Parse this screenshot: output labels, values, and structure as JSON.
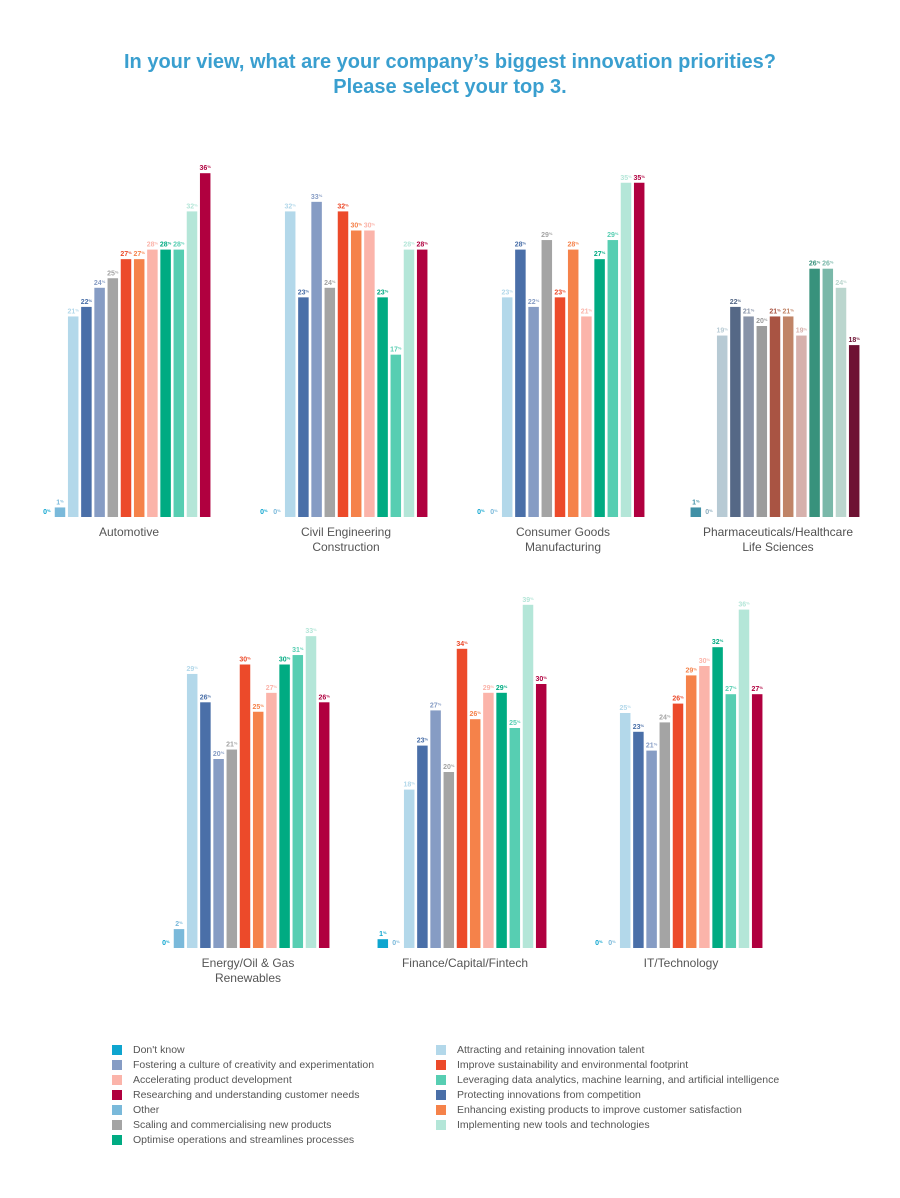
{
  "title": {
    "line1": "In your view, what are your company’s biggest innovation priorities?",
    "line2": "Please select your top 3."
  },
  "chart_data": {
    "type": "bar",
    "title": "In your view, what are your company’s biggest innovation priorities? Please select your top 3.",
    "unit": "%",
    "series_names": [
      "Don't know",
      "Other",
      "Attracting and retaining innovation talent",
      "Protecting innovations from competition",
      "Fostering a culture of creativity and experimentation",
      "Scaling and commercialising new products",
      "Improve sustainability and environmental footprint",
      "Enhancing existing products to improve customer satisfaction",
      "Accelerating product development",
      "Optimise operations and streamlines processes",
      "Leveraging data analytics, machine learning, and artificial intelligence",
      "Implementing new tools and technologies",
      "Researching and understanding customer needs"
    ],
    "colors": [
      "#0ea5cf",
      "#7ab9da",
      "#b3d8ea",
      "#4a6fa8",
      "#869cc4",
      "#a4a4a4",
      "#ec4a2a",
      "#f5824a",
      "#fbb4aa",
      "#00ab82",
      "#57ceb2",
      "#b4e6d8",
      "#b0003f"
    ],
    "panels": [
      {
        "label": [
          "Automotive"
        ],
        "values": [
          0,
          1,
          21,
          22,
          24,
          25,
          27,
          27,
          28,
          28,
          28,
          32,
          36
        ]
      },
      {
        "label": [
          "Civil Engineering",
          "Construction"
        ],
        "values": [
          0,
          0,
          32,
          23,
          33,
          24,
          32,
          30,
          30,
          23,
          17,
          28,
          28
        ]
      },
      {
        "label": [
          "Consumer Goods",
          "Manufacturing"
        ],
        "values": [
          0,
          0,
          23,
          28,
          22,
          29,
          23,
          28,
          21,
          27,
          29,
          35,
          35
        ]
      },
      {
        "label": [
          "Pharmaceuticals/Healthcare",
          "Life Sciences"
        ],
        "values": [
          1,
          0,
          19,
          22,
          21,
          20,
          21,
          21,
          19,
          26,
          26,
          24,
          18
        ],
        "muted": true
      },
      {
        "label": [
          "Energy/Oil & Gas",
          "Renewables"
        ],
        "values": [
          0,
          2,
          29,
          26,
          20,
          21,
          30,
          25,
          27,
          30,
          31,
          33,
          26
        ]
      },
      {
        "label": [
          "Finance/Capital/Fintech"
        ],
        "values": [
          1,
          0,
          18,
          23,
          27,
          20,
          34,
          26,
          29,
          29,
          25,
          39,
          30
        ]
      },
      {
        "label": [
          "IT/Technology"
        ],
        "values": [
          0,
          0,
          25,
          23,
          21,
          24,
          26,
          29,
          30,
          32,
          27,
          36,
          27
        ]
      }
    ],
    "legend_position": "bottom",
    "grid": false
  },
  "legend": {
    "left": [
      {
        "label": "Don't know",
        "color": "#0ea5cf"
      },
      {
        "label": "Fostering a culture of creativity and experimentation",
        "color": "#869cc4"
      },
      {
        "label": "Accelerating product development",
        "color": "#fbb4aa"
      },
      {
        "label": "Researching and understanding customer needs",
        "color": "#b0003f"
      },
      {
        "label": "Other",
        "color": "#7ab9da"
      },
      {
        "label": "Scaling and commercialising new products",
        "color": "#a4a4a4"
      },
      {
        "label": "Optimise operations and streamlines processes",
        "color": "#00ab82"
      }
    ],
    "right": [
      {
        "label": "Attracting and retaining innovation talent",
        "color": "#b3d8ea"
      },
      {
        "label": "Improve sustainability and environmental footprint",
        "color": "#ec4a2a"
      },
      {
        "label": "Leveraging data analytics, machine learning, and artificial intelligence",
        "color": "#57ceb2"
      },
      {
        "label": "Protecting innovations from competition",
        "color": "#4a6fa8"
      },
      {
        "label": "Enhancing existing products to improve customer satisfaction",
        "color": "#f5824a"
      },
      {
        "label": "Implementing new tools and technologies",
        "color": "#b4e6d8"
      }
    ]
  }
}
